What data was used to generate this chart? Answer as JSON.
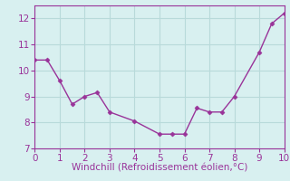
{
  "x": [
    0,
    0.5,
    1,
    1.5,
    2,
    2.5,
    3,
    4,
    5,
    5.5,
    6,
    6.5,
    7,
    7.5,
    8,
    9,
    9.5,
    10
  ],
  "y": [
    10.4,
    10.4,
    9.6,
    8.7,
    9.0,
    9.15,
    8.4,
    8.05,
    7.55,
    7.55,
    7.55,
    8.55,
    8.4,
    8.4,
    9.0,
    10.7,
    11.8,
    12.2
  ],
  "line_color": "#993399",
  "marker": "D",
  "markersize": 2.5,
  "linewidth": 1.0,
  "xlabel": "Windchill (Refroidissement éolien,°C)",
  "xlabel_color": "#993399",
  "xlabel_fontsize": 7.5,
  "background_color": "#d8f0f0",
  "grid_color": "#b8dada",
  "tick_color": "#993399",
  "spine_color": "#993399",
  "xlim": [
    0,
    10
  ],
  "ylim": [
    7.0,
    12.5
  ],
  "xticks": [
    0,
    1,
    2,
    3,
    4,
    5,
    6,
    7,
    8,
    9,
    10
  ],
  "yticks": [
    7,
    8,
    9,
    10,
    11,
    12
  ],
  "tick_fontsize": 7.5
}
